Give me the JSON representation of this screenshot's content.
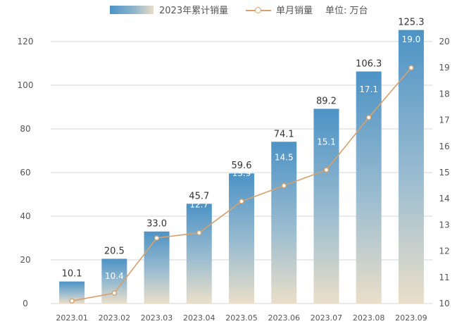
{
  "legend": {
    "cumulative_label": "2023年累计销量",
    "monthly_label": "单月销量",
    "unit_label": "单位: 万台"
  },
  "colors": {
    "bar_top": "#4d93c6",
    "bar_mid": "#9cbdd0",
    "bar_bottom": "#eadfc9",
    "line": "#d8a06b",
    "grid": "#d6d6d6"
  },
  "chart_data": {
    "type": "bar",
    "categories": [
      "2023.01",
      "2023.02",
      "2023.03",
      "2023.04",
      "2023.05",
      "2023.06",
      "2023.07",
      "2023.08",
      "2023.09"
    ],
    "series": [
      {
        "name": "2023年累计销量",
        "type": "bar",
        "axis": "left",
        "values": [
          10.1,
          20.5,
          33.0,
          45.7,
          59.6,
          74.1,
          89.2,
          106.3,
          125.3
        ],
        "labels": [
          "10.1",
          "20.5",
          "33.0",
          "45.7",
          "59.6",
          "74.1",
          "89.2",
          "106.3",
          "125.3"
        ]
      },
      {
        "name": "单月销量",
        "type": "line",
        "axis": "right",
        "values": [
          10.1,
          10.4,
          12.5,
          12.7,
          13.9,
          14.5,
          15.1,
          17.1,
          19.0
        ],
        "labels": [
          "",
          "10.4",
          "12.5",
          "12.7",
          "13.9",
          "14.5",
          "15.1",
          "17.1",
          "19.0"
        ]
      }
    ],
    "y_left": {
      "min": 0,
      "max": 120,
      "ticks": [
        "0",
        "20",
        "40",
        "60",
        "80",
        "100",
        "120"
      ]
    },
    "y_right": {
      "min": 10,
      "max": 20,
      "ticks": [
        "10",
        "11",
        "12",
        "13",
        "14",
        "15",
        "16",
        "17",
        "18",
        "19",
        "20"
      ]
    },
    "grid": true,
    "legend_position": "top"
  }
}
